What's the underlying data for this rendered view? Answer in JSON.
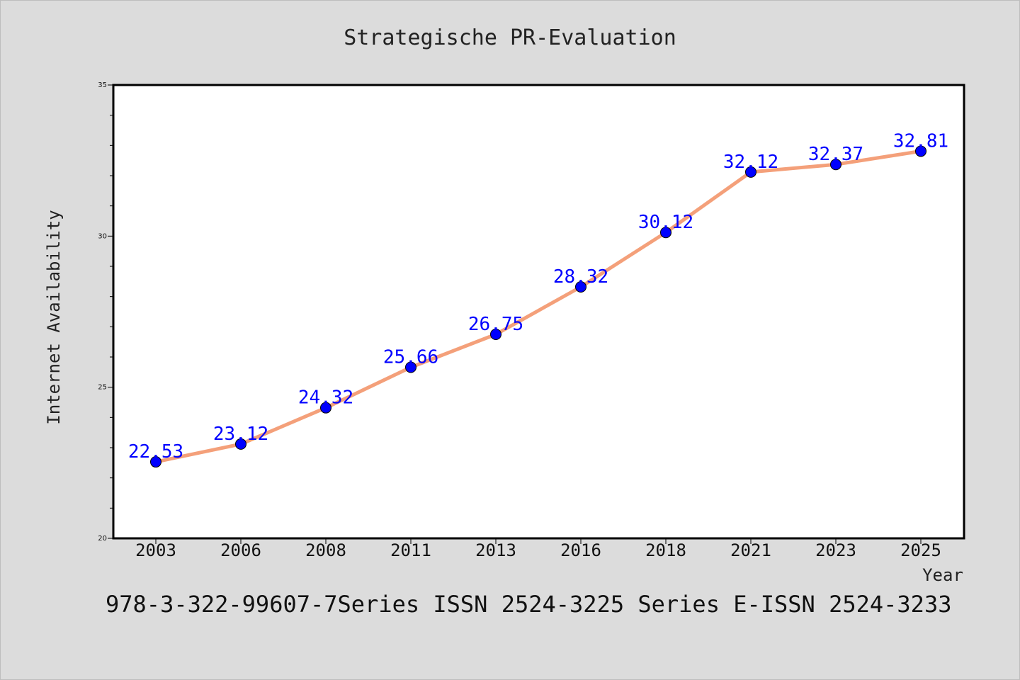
{
  "chart_data": {
    "type": "line",
    "title": "Strategische PR-Evaluation",
    "xlabel": "Year",
    "ylabel": "Internet Availability",
    "categories": [
      "2003",
      "2006",
      "2008",
      "2011",
      "2013",
      "2016",
      "2018",
      "2021",
      "2023",
      "2025"
    ],
    "series": [
      {
        "values": [
          22.53,
          23.12,
          24.32,
          25.66,
          26.75,
          28.32,
          30.12,
          32.12,
          32.37,
          32.81
        ],
        "labels": [
          "22.53",
          "23.12",
          "24.32",
          "25.66",
          "26.75",
          "28.32",
          "30.12",
          "32.12",
          "32.37",
          "32.81"
        ]
      }
    ],
    "ylim": [
      20,
      35
    ],
    "yticks": [
      "20",
      "25",
      "30",
      "35"
    ],
    "grid": false,
    "colors": {
      "line": "#f4a07a",
      "marker": "#0000ff",
      "label": "#0000ff",
      "background": "#dcdcdc",
      "plot_background": "#ffffff"
    }
  },
  "footer": {
    "text": "978-3-322-99607-7Series ISSN 2524-3225 Series E-ISSN 2524-3233"
  }
}
